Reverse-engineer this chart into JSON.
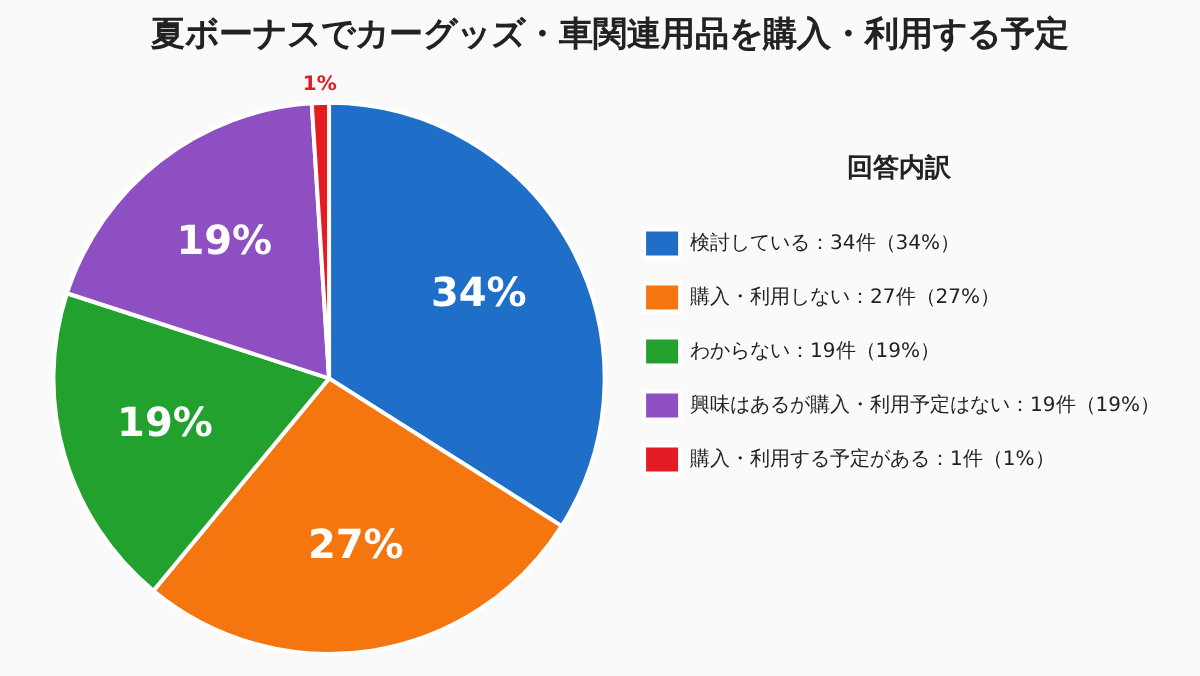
{
  "chart_data": {
    "type": "pie",
    "title": "夏ボーナスでカーグッズ・車関連用品を購入・利用する予定",
    "legend_title": "回答内訳",
    "categories": [
      "検討している：34件（34%）",
      "購入・利用しない：27件（27%）",
      "わからない：19件（19%）",
      "興味はあるが購入・利用予定はない：19件（19%）",
      "購入・利用する予定がある：1件（1%）"
    ],
    "values": [
      34,
      27,
      19,
      19,
      1
    ],
    "colors": [
      "#1f6fc8",
      "#f5760f",
      "#23a12e",
      "#8e4fc2",
      "#e31b23"
    ],
    "value_labels": [
      "34%",
      "27%",
      "19%",
      "19%",
      "1%"
    ],
    "legend": "right"
  }
}
